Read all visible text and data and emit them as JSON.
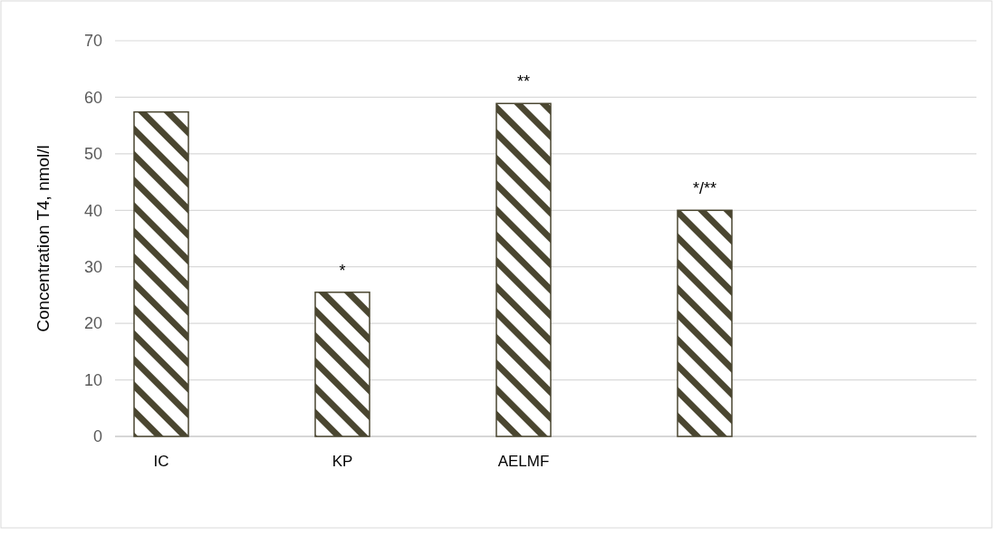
{
  "chart_data": {
    "type": "bar",
    "ylabel": "Concentration T4, nmol/l",
    "categories": [
      "IC",
      "KP",
      "AELMF",
      null,
      null
    ],
    "values": [
      57.4,
      25.5,
      58.9,
      40.0,
      null
    ],
    "value_labels": [
      null,
      "*",
      "**",
      "*/**",
      null
    ],
    "color": "#4a4630",
    "ylim": [
      0,
      70
    ],
    "yticks": [
      0,
      10,
      20,
      30,
      40,
      50,
      60,
      70
    ],
    "grid": "y"
  }
}
